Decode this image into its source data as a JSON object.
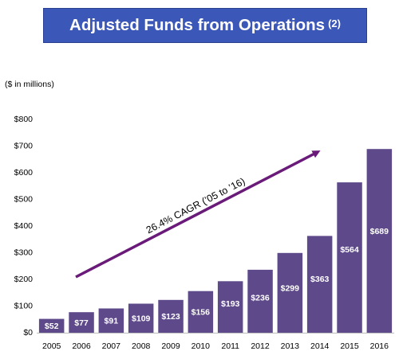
{
  "header": {
    "title": "Adjusted Funds from Operations",
    "footnote": "(2)"
  },
  "units_label": "($ in millions)",
  "annotation": {
    "cagr_text": "26.4% CAGR (’05 to ’16)"
  },
  "colors": {
    "banner": "#3b57b8",
    "bar": "#5e4a8a",
    "arrow": "#6a1b7a"
  },
  "chart_data": {
    "type": "bar",
    "categories": [
      "2005",
      "2006",
      "2007",
      "2008",
      "2009",
      "2010",
      "2011",
      "2012",
      "2013",
      "2014",
      "2015",
      "2016"
    ],
    "values": [
      52,
      77,
      91,
      109,
      123,
      156,
      193,
      236,
      299,
      363,
      564,
      689
    ],
    "value_labels": [
      "$52",
      "$77",
      "$91",
      "$109",
      "$123",
      "$156",
      "$193",
      "$236",
      "$299",
      "$363",
      "$564",
      "$689"
    ],
    "y_ticks": [
      0,
      100,
      200,
      300,
      400,
      500,
      600,
      700,
      800
    ],
    "y_tick_labels": [
      "$0",
      "$100",
      "$200",
      "$300",
      "$400",
      "$500",
      "$600",
      "$700",
      "$800"
    ],
    "ylim": [
      0,
      800
    ],
    "grid": false,
    "title": "Adjusted Funds from Operations",
    "xlabel": "",
    "ylabel": "($ in millions)"
  }
}
